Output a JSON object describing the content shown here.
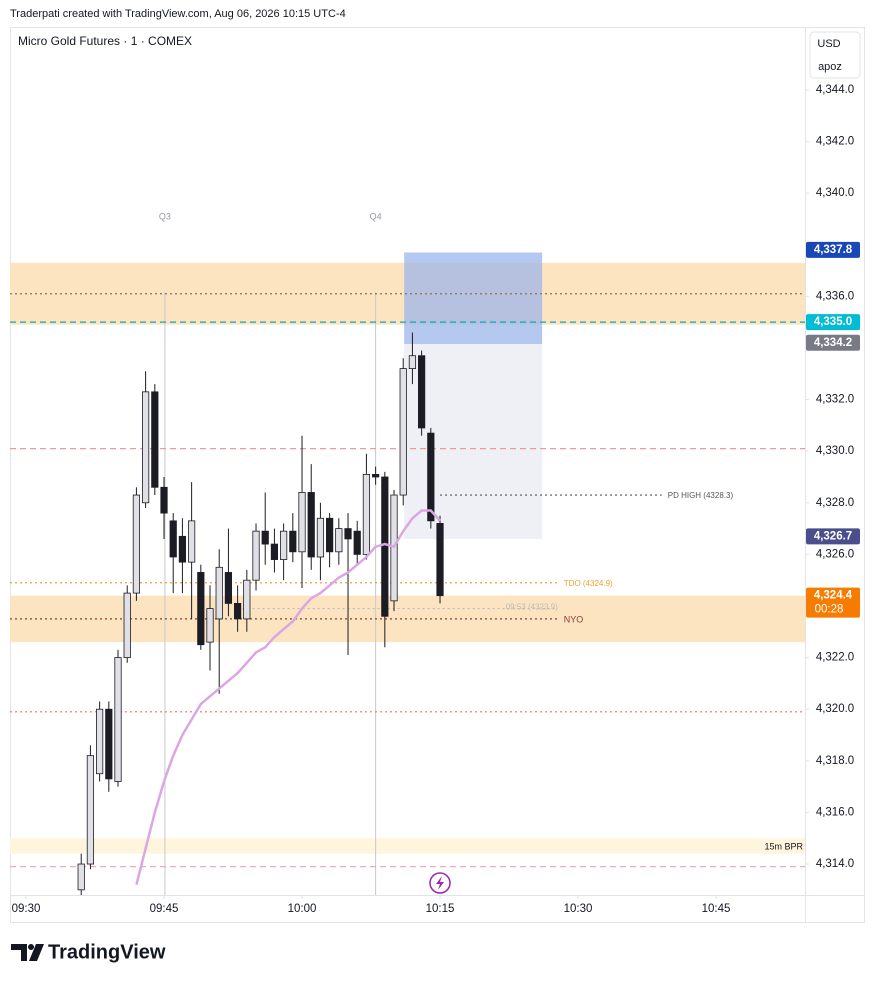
{
  "header": "Traderpati created with TradingView.com, Aug 06, 2026 10:15 UTC-4",
  "brand": "TradingView",
  "chart_data": {
    "type": "candlestick",
    "title": "Micro Gold Futures · 1 · COMEX",
    "currency": "USD",
    "unit_label": "apoz",
    "up_color": "#e0e0e6",
    "down_color": "#1c1c24",
    "x": [
      576,
      577,
      578,
      579,
      580,
      581,
      582,
      583,
      584,
      585,
      586,
      587,
      588,
      589,
      590,
      591,
      592,
      593,
      594,
      595,
      596,
      597,
      598,
      599,
      600,
      601,
      602,
      603,
      604,
      605,
      606,
      607,
      608,
      609,
      610,
      611,
      612,
      613,
      614,
      615
    ],
    "open": [
      4313.0,
      4314.0,
      4317.5,
      4320.0,
      4317.2,
      4322.0,
      4324.5,
      4328.0,
      4332.3,
      4328.6,
      4327.3,
      4326.7,
      4325.7,
      4325.3,
      4322.6,
      4323.5,
      4325.3,
      4324.1,
      4323.5,
      4325.0,
      4326.9,
      4326.4,
      4325.8,
      4326.9,
      4326.1,
      4328.4,
      4325.9,
      4327.4,
      4326.1,
      4327.0,
      4326.9,
      4326.0,
      4329.1,
      4329.0,
      4324.2,
      4328.3,
      4333.2,
      4333.7,
      4330.7,
      4327.2
    ],
    "high": [
      4314.4,
      4318.6,
      4320.3,
      4320.3,
      4322.3,
      4324.8,
      4328.6,
      4333.1,
      4332.6,
      4329.0,
      4327.6,
      4327.4,
      4328.8,
      4325.6,
      4324.8,
      4326.2,
      4327.0,
      4324.8,
      4325.4,
      4327.2,
      4328.4,
      4327.0,
      4327.2,
      4327.6,
      4330.6,
      4329.5,
      4328.0,
      4327.6,
      4327.4,
      4327.6,
      4327.3,
      4329.9,
      4329.4,
      4329.2,
      4328.5,
      4333.6,
      4334.6,
      4333.9,
      4330.9,
      4327.5
    ],
    "low": [
      4312.8,
      4313.8,
      4317.2,
      4316.8,
      4317.0,
      4321.8,
      4324.2,
      4327.8,
      4328.3,
      4326.6,
      4324.5,
      4324.5,
      4323.5,
      4322.3,
      4321.5,
      4320.6,
      4323.6,
      4323.0,
      4323.0,
      4324.6,
      4325.6,
      4325.3,
      4325.0,
      4325.7,
      4324.7,
      4325.4,
      4325.0,
      4325.5,
      4325.6,
      4322.1,
      4325.6,
      4325.8,
      4328.7,
      4322.4,
      4323.8,
      4327.9,
      4332.6,
      4330.6,
      4327.0,
      4324.1
    ],
    "close": [
      4314.0,
      4318.2,
      4320.0,
      4317.3,
      4322.0,
      4324.5,
      4328.3,
      4332.3,
      4328.6,
      4327.6,
      4325.9,
      4325.7,
      4327.3,
      4322.5,
      4323.9,
      4325.5,
      4324.1,
      4323.5,
      4325.0,
      4326.9,
      4326.4,
      4325.8,
      4326.9,
      4326.1,
      4328.4,
      4325.9,
      4327.4,
      4326.1,
      4327.0,
      4326.6,
      4326.0,
      4329.1,
      4329.0,
      4323.6,
      4328.3,
      4333.2,
      4333.7,
      4330.9,
      4327.3,
      4324.4
    ],
    "overlay": {
      "color": "#dba6e3",
      "values": [
        null,
        null,
        null,
        null,
        null,
        null,
        4313.2,
        4314.6,
        4316.0,
        4317.2,
        4318.2,
        4319.0,
        4319.6,
        4320.2,
        4320.5,
        4320.8,
        4321.1,
        4321.4,
        4321.8,
        4322.2,
        4322.4,
        4322.8,
        4323.1,
        4323.4,
        4323.9,
        4324.3,
        4324.5,
        4324.8,
        4325.1,
        4325.3,
        4325.6,
        4325.9,
        4326.3,
        4326.4,
        4326.3,
        4326.9,
        4327.4,
        4327.7,
        4327.7,
        4327.3
      ]
    },
    "xlim": [
      568.26,
      654.67
    ],
    "ylim": [
      4312.8,
      4346.4
    ],
    "xticks": [
      {
        "value": 570,
        "label": "09:30"
      },
      {
        "value": 585,
        "label": "09:45"
      },
      {
        "value": 600,
        "label": "10:00"
      },
      {
        "value": 615,
        "label": "10:15"
      },
      {
        "value": 630,
        "label": "10:30"
      },
      {
        "value": 645,
        "label": "10:45"
      }
    ],
    "yticks": [
      {
        "value": 4314,
        "label": "4,314.0"
      },
      {
        "value": 4316,
        "label": "4,316.0"
      },
      {
        "value": 4318,
        "label": "4,318.0"
      },
      {
        "value": 4320,
        "label": "4,320.0"
      },
      {
        "value": 4322,
        "label": "4,322.0"
      },
      {
        "value": 4326,
        "label": "4,326.0"
      },
      {
        "value": 4328,
        "label": "4,328.0"
      },
      {
        "value": 4330,
        "label": "4,330.0"
      },
      {
        "value": 4332,
        "label": "4,332.0"
      },
      {
        "value": 4336,
        "label": "4,336.0"
      },
      {
        "value": 4340,
        "label": "4,340.0"
      },
      {
        "value": 4342,
        "label": "4,342.0"
      },
      {
        "value": 4344,
        "label": "4,344.0"
      }
    ],
    "zones": [
      {
        "from": 4334.9,
        "to": 4337.3,
        "color": "#fde4c0"
      },
      {
        "from": 4322.6,
        "to": 4324.4,
        "color": "#fde4c0"
      },
      {
        "from": 4314.4,
        "to": 4315.0,
        "color": "#fff5dc",
        "label": "15m BPR"
      }
    ],
    "boxes": [
      {
        "x": [
          611.1,
          626.1
        ],
        "y": [
          4334.15,
          4337.7
        ],
        "color": "#9cb6ea"
      },
      {
        "x": [
          611.1,
          626.1
        ],
        "y": [
          4326.6,
          4334.15
        ],
        "color": "#e9eaf3"
      }
    ],
    "markers": [
      {
        "label": "Q3",
        "x": 585.1
      },
      {
        "label": "Q4",
        "x": 608.0
      }
    ],
    "levels": [
      {
        "value": 4336.1,
        "color": "#8d6e63",
        "style": "dotted"
      },
      {
        "value": 4335.0,
        "color": "#00acc1",
        "style": "dashed"
      },
      {
        "value": 4330.1,
        "color": "#ef9a9a",
        "style": "dashed"
      },
      {
        "value": 4319.9,
        "color": "#e57373",
        "style": "dotted"
      },
      {
        "value": 4313.9,
        "color": "#f4a7bd",
        "style": "dashed"
      },
      {
        "value": 4324.9,
        "label": "TDO (4324.9)",
        "color": "#f0a030",
        "style": "dotted",
        "x_to": 627.8
      },
      {
        "value": 4323.5,
        "label": "NYO",
        "color": "#8b3a3a",
        "style": "dotted",
        "x_to": 627.8
      },
      {
        "value": 4328.3,
        "label": "PD HIGH (4328.3)",
        "color": "#555",
        "style": "dotted",
        "x_from": 615.0,
        "x_to": 639.1
      },
      {
        "value": 4323.9,
        "label": "09:53 (4323.9)",
        "color": "#bbb",
        "style": "dotted",
        "x_from": 593.0,
        "x_to": 627.8
      }
    ],
    "price_tags": [
      {
        "value": 4337.8,
        "label": "4,337.8",
        "color": "#1a47b8"
      },
      {
        "value": 4335.0,
        "label": "4,335.0",
        "color": "#00bcd4"
      },
      {
        "value": 4334.2,
        "label": "4,334.2",
        "color": "#787b86"
      },
      {
        "value": 4326.7,
        "label": "4,326.7",
        "color": "#4a4f8c"
      },
      {
        "value": 4324.4,
        "label": "4,324.4",
        "color": "#f57c00",
        "countdown": "00:28"
      }
    ]
  }
}
